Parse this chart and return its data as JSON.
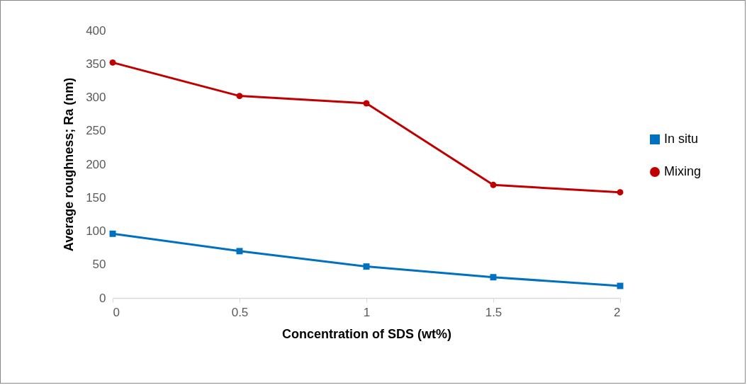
{
  "chart_data": {
    "type": "line",
    "xlabel": "Concentration of SDS (wt%)",
    "ylabel": "Average roughness; Ra (nm)",
    "x": [
      0,
      0.5,
      1,
      1.5,
      2
    ],
    "series": [
      {
        "name": "In situ",
        "color": "#0070c0",
        "marker": "square",
        "values": [
          96,
          70,
          47,
          31,
          18
        ]
      },
      {
        "name": "Mixing",
        "color": "#c00000",
        "marker": "circle",
        "values": [
          352,
          302,
          291,
          169,
          158
        ]
      }
    ],
    "xlim": [
      0,
      2
    ],
    "xticks": [
      0,
      0.5,
      1,
      1.5,
      2
    ],
    "ylim": [
      0,
      400
    ],
    "yticks": [
      0,
      50,
      100,
      150,
      200,
      250,
      300,
      350,
      400
    ],
    "grid": false,
    "legend": "right"
  }
}
